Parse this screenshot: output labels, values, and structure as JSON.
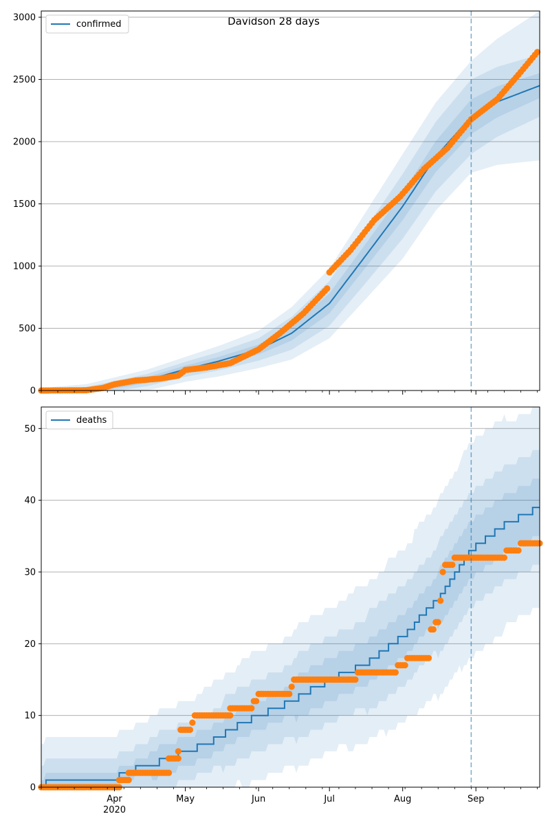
{
  "title": "Davidson 28 days",
  "colors": {
    "model": "#1f77b4",
    "observed": "#ff7f0e",
    "band": "#1f77b4",
    "grid": "#b0b0b0",
    "forecast_line": "#1f77b4"
  },
  "x_axis": {
    "start": "2020-03-01",
    "end": "2020-09-28",
    "forecast_start": "2020-08-30",
    "month_ticks": [
      {
        "date": "2020-04-01",
        "label": "Apr",
        "sublabel": "2020"
      },
      {
        "date": "2020-05-01",
        "label": "May",
        "sublabel": ""
      },
      {
        "date": "2020-06-01",
        "label": "Jun",
        "sublabel": ""
      },
      {
        "date": "2020-07-01",
        "label": "Jul",
        "sublabel": ""
      },
      {
        "date": "2020-08-01",
        "label": "Aug",
        "sublabel": ""
      },
      {
        "date": "2020-09-01",
        "label": "Sep",
        "sublabel": ""
      }
    ]
  },
  "chart_data": [
    {
      "type": "line",
      "panel": "top",
      "legend": "confirmed",
      "legend_position": "top-left",
      "grid": "y",
      "ylim": [
        0,
        3050
      ],
      "yticks": [
        0,
        500,
        1000,
        1500,
        2000,
        2500,
        3000
      ],
      "model_median": [
        [
          "2020-03-01",
          0
        ],
        [
          "2020-03-20",
          0
        ],
        [
          "2020-04-01",
          35
        ],
        [
          "2020-04-15",
          85
        ],
        [
          "2020-05-01",
          170
        ],
        [
          "2020-05-15",
          235
        ],
        [
          "2020-06-01",
          330
        ],
        [
          "2020-06-15",
          460
        ],
        [
          "2020-07-01",
          700
        ],
        [
          "2020-07-15",
          1050
        ],
        [
          "2020-08-01",
          1480
        ],
        [
          "2020-08-15",
          1880
        ],
        [
          "2020-08-30",
          2200
        ],
        [
          "2020-09-10",
          2320
        ],
        [
          "2020-09-28",
          2450
        ]
      ],
      "band_half_widths": [
        [
          "2020-03-01",
          5,
          10,
          20
        ],
        [
          "2020-04-01",
          20,
          40,
          70
        ],
        [
          "2020-05-01",
          30,
          60,
          100
        ],
        [
          "2020-06-01",
          40,
          90,
          150
        ],
        [
          "2020-07-01",
          80,
          180,
          280
        ],
        [
          "2020-08-01",
          110,
          260,
          420
        ],
        [
          "2020-08-30",
          140,
          300,
          450
        ],
        [
          "2020-09-28",
          100,
          250,
          600
        ]
      ],
      "observed": [
        [
          "2020-03-01",
          0
        ],
        [
          "2020-03-20",
          2
        ],
        [
          "2020-03-27",
          20
        ],
        [
          "2020-04-01",
          50
        ],
        [
          "2020-04-10",
          80
        ],
        [
          "2020-04-20",
          95
        ],
        [
          "2020-04-28",
          120
        ],
        [
          "2020-05-01",
          165
        ],
        [
          "2020-05-10",
          185
        ],
        [
          "2020-05-20",
          220
        ],
        [
          "2020-06-01",
          330
        ],
        [
          "2020-06-10",
          460
        ],
        [
          "2020-06-20",
          620
        ],
        [
          "2020-06-30",
          820
        ],
        [
          "2020-07-01",
          950
        ],
        [
          "2020-07-10",
          1130
        ],
        [
          "2020-07-20",
          1370
        ],
        [
          "2020-07-31",
          1560
        ],
        [
          "2020-08-10",
          1780
        ],
        [
          "2020-08-20",
          1950
        ],
        [
          "2020-08-30",
          2180
        ],
        [
          "2020-09-10",
          2340
        ],
        [
          "2020-09-20",
          2560
        ],
        [
          "2020-09-27",
          2720
        ]
      ]
    },
    {
      "type": "line",
      "panel": "bottom",
      "legend": "deaths",
      "legend_position": "top-left",
      "grid": "y",
      "ylim": [
        0,
        53
      ],
      "yticks": [
        0,
        10,
        20,
        30,
        40,
        50
      ],
      "model_median": [
        [
          "2020-03-01",
          0
        ],
        [
          "2020-03-05",
          1
        ],
        [
          "2020-04-01",
          1
        ],
        [
          "2020-04-05",
          2
        ],
        [
          "2020-04-15",
          3
        ],
        [
          "2020-04-25",
          4
        ],
        [
          "2020-05-01",
          5
        ],
        [
          "2020-05-10",
          6
        ],
        [
          "2020-05-15",
          7
        ],
        [
          "2020-05-25",
          9
        ],
        [
          "2020-06-01",
          10
        ],
        [
          "2020-06-15",
          12
        ],
        [
          "2020-07-01",
          15
        ],
        [
          "2020-07-15",
          17
        ],
        [
          "2020-08-01",
          21
        ],
        [
          "2020-08-15",
          26
        ],
        [
          "2020-08-30",
          33
        ],
        [
          "2020-09-10",
          36
        ],
        [
          "2020-09-28",
          39
        ]
      ],
      "band_half_widths": [
        [
          "2020-03-01",
          1,
          3,
          6
        ],
        [
          "2020-04-01",
          1,
          3,
          6
        ],
        [
          "2020-05-01",
          2,
          4,
          7
        ],
        [
          "2020-06-01",
          2,
          5,
          9
        ],
        [
          "2020-07-01",
          3,
          6,
          10
        ],
        [
          "2020-08-01",
          3,
          7,
          12
        ],
        [
          "2020-08-30",
          4,
          8,
          15
        ],
        [
          "2020-09-28",
          4,
          8,
          14
        ]
      ],
      "observed_steps": [
        [
          "2020-03-01",
          "2020-04-03",
          0
        ],
        [
          "2020-04-03",
          "2020-04-07",
          1
        ],
        [
          "2020-04-07",
          "2020-04-24",
          2
        ],
        [
          "2020-04-24",
          "2020-04-28",
          4
        ],
        [
          "2020-04-28",
          "2020-04-28",
          5
        ],
        [
          "2020-04-29",
          "2020-05-03",
          8
        ],
        [
          "2020-05-04",
          "2020-05-04",
          9
        ],
        [
          "2020-05-05",
          "2020-05-20",
          10
        ],
        [
          "2020-05-20",
          "2020-05-29",
          11
        ],
        [
          "2020-05-30",
          "2020-05-31",
          12
        ],
        [
          "2020-06-01",
          "2020-06-14",
          13
        ],
        [
          "2020-06-15",
          "2020-06-15",
          14
        ],
        [
          "2020-06-16",
          "2020-07-12",
          15
        ],
        [
          "2020-07-13",
          "2020-07-29",
          16
        ],
        [
          "2020-07-30",
          "2020-08-02",
          17
        ],
        [
          "2020-08-03",
          "2020-08-12",
          18
        ],
        [
          "2020-08-13",
          "2020-08-14",
          22
        ],
        [
          "2020-08-15",
          "2020-08-16",
          23
        ],
        [
          "2020-08-17",
          "2020-08-17",
          26
        ],
        [
          "2020-08-18",
          "2020-08-18",
          30
        ],
        [
          "2020-08-19",
          "2020-08-22",
          31
        ],
        [
          "2020-08-23",
          "2020-09-13",
          32
        ],
        [
          "2020-09-14",
          "2020-09-19",
          33
        ],
        [
          "2020-09-20",
          "2020-09-28",
          34
        ]
      ]
    }
  ]
}
